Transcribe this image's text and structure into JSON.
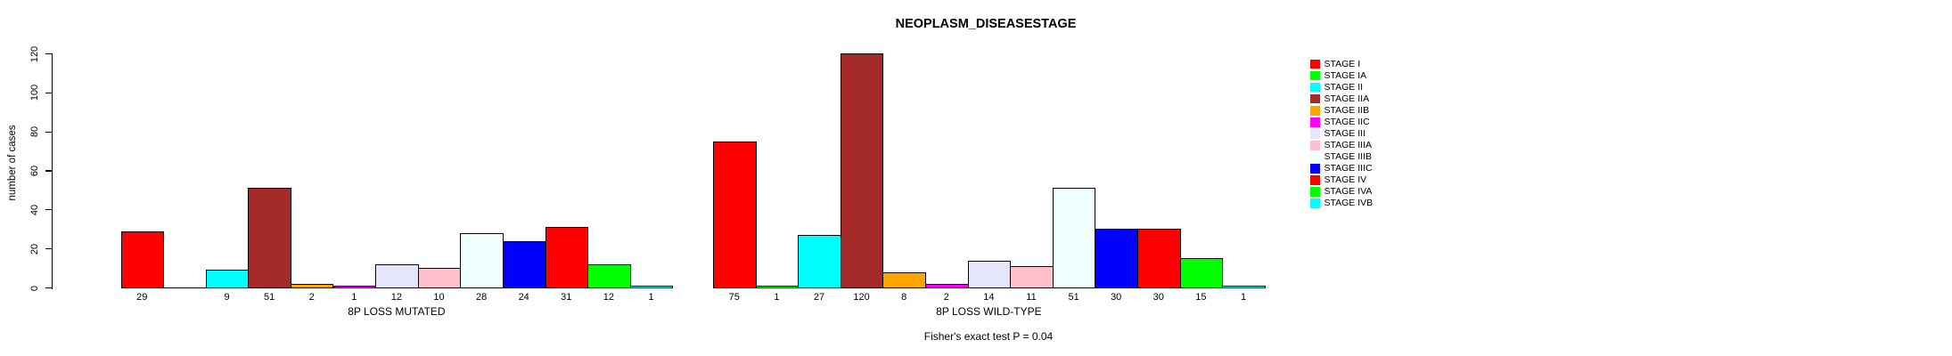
{
  "chart_data": {
    "type": "bar",
    "title": "NEOPLASM_DISEASESTAGE",
    "ylabel": "number of cases",
    "ylim": [
      0,
      120
    ],
    "yticks": [
      0,
      20,
      40,
      60,
      80,
      100,
      120
    ],
    "grid": false,
    "annotation": "Fisher's exact test P = 0.04",
    "categories": [
      "STAGE I",
      "STAGE IA",
      "STAGE II",
      "STAGE IIA",
      "STAGE IIB",
      "STAGE IIC",
      "STAGE III",
      "STAGE IIIA",
      "STAGE IIIB",
      "STAGE IIIC",
      "STAGE IV",
      "STAGE IVA",
      "STAGE IVB"
    ],
    "palette": [
      "#FF0000",
      "#00FF00",
      "#00FFFF",
      "#A52A2A",
      "#FFA500",
      "#FF00FF",
      "#E6E6FA",
      "#FFC0CB",
      "#F0FFFF",
      "#0000FF",
      "#FF0000",
      "#00FF00",
      "#00FFFF"
    ],
    "groups": [
      {
        "label": "8P LOSS MUTATED",
        "values": [
          29,
          0,
          9,
          51,
          2,
          1,
          12,
          10,
          28,
          24,
          31,
          12,
          1
        ],
        "count_labels": [
          "29",
          "",
          "9",
          "51",
          "2",
          "1",
          "12",
          "10",
          "28",
          "24",
          "31",
          "12",
          "1"
        ]
      },
      {
        "label": "8P LOSS WILD-TYPE",
        "values": [
          75,
          1,
          27,
          120,
          8,
          2,
          14,
          11,
          51,
          30,
          30,
          15,
          1
        ],
        "count_labels": [
          "75",
          "1",
          "27",
          "120",
          "8",
          "2",
          "14",
          "11",
          "51",
          "30",
          "30",
          "15",
          "1"
        ]
      }
    ],
    "legend": {
      "position": "right",
      "entries": [
        "STAGE I",
        "STAGE IA",
        "STAGE II",
        "STAGE IIA",
        "STAGE IIB",
        "STAGE IIC",
        "STAGE III",
        "STAGE IIIA",
        "STAGE IIIB",
        "STAGE IIIC",
        "STAGE IV",
        "STAGE IVA",
        "STAGE IVB"
      ]
    }
  }
}
